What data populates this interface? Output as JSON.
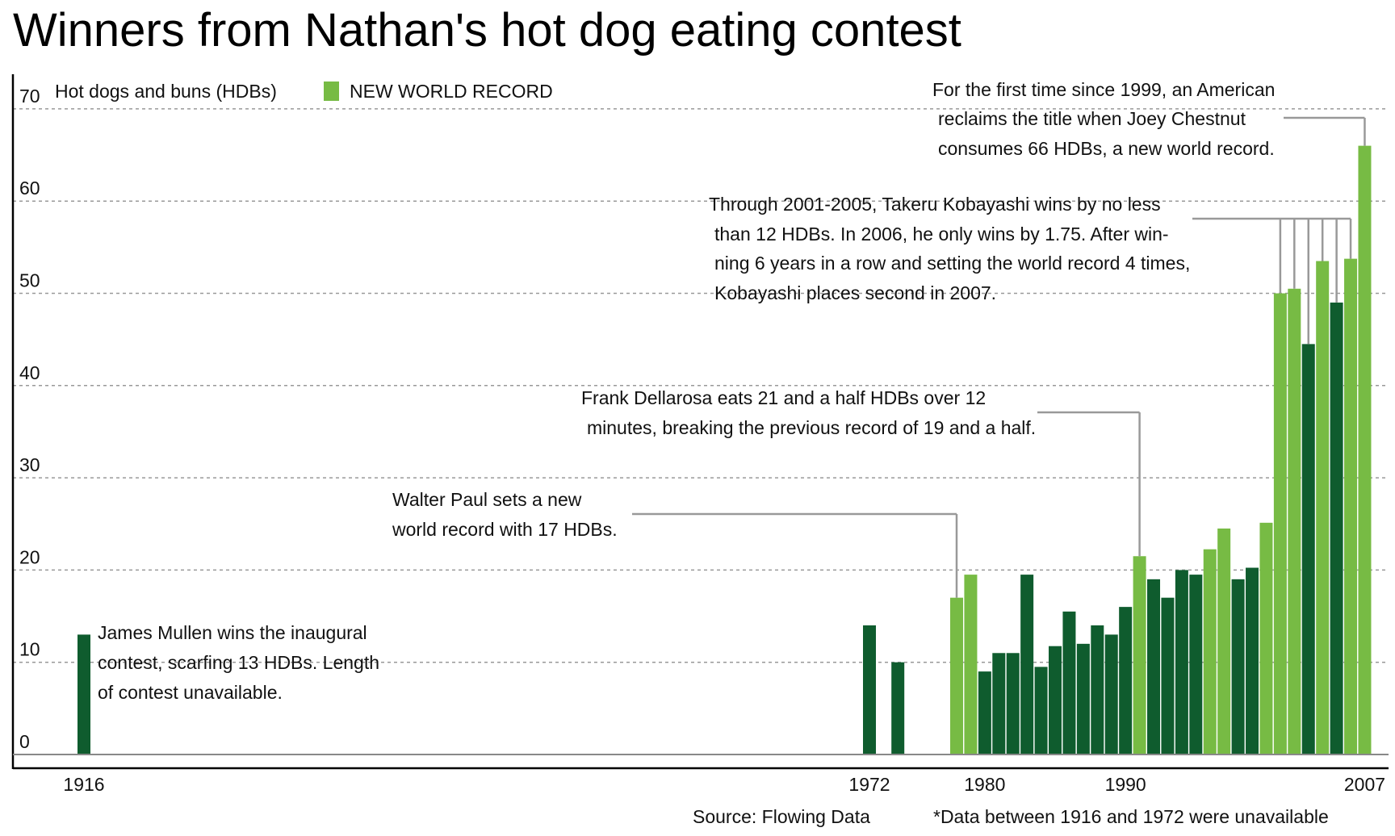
{
  "chart_data": {
    "type": "bar",
    "title": "Winners from Nathan's hot dog eating contest",
    "ylabel": "Hot dogs and buns (HDBs)",
    "ylim": [
      0,
      70
    ],
    "yticks": [
      0,
      10,
      20,
      30,
      40,
      50,
      60,
      70
    ],
    "xticks": [
      {
        "year": 1916,
        "label": "1916"
      },
      {
        "year": 1972,
        "label": "1972"
      },
      {
        "year": 1980,
        "label": "1980"
      },
      {
        "year": 1990,
        "label": "1990"
      },
      {
        "year": 2007,
        "label": "2007"
      }
    ],
    "grid": true,
    "legend": {
      "label": "NEW WORLD RECORD",
      "color": "#77bb44",
      "placement": "top-left"
    },
    "colors": {
      "record": "#77bb44",
      "regular": "#0f5c2e",
      "axis": "#000000",
      "grid": "#999999",
      "leader": "#999999"
    },
    "series": [
      {
        "year": 1916,
        "value": 13,
        "record": false
      },
      {
        "year": 1972,
        "value": 14,
        "record": false
      },
      {
        "year": 1974,
        "value": 10,
        "record": false
      },
      {
        "year": 1978,
        "value": 17,
        "record": true
      },
      {
        "year": 1979,
        "value": 19.5,
        "record": true
      },
      {
        "year": 1980,
        "value": 9,
        "record": false
      },
      {
        "year": 1981,
        "value": 11,
        "record": false
      },
      {
        "year": 1982,
        "value": 11,
        "record": false
      },
      {
        "year": 1983,
        "value": 19.5,
        "record": false
      },
      {
        "year": 1984,
        "value": 9.5,
        "record": false
      },
      {
        "year": 1985,
        "value": 11.75,
        "record": false
      },
      {
        "year": 1986,
        "value": 15.5,
        "record": false
      },
      {
        "year": 1987,
        "value": 12,
        "record": false
      },
      {
        "year": 1988,
        "value": 14,
        "record": false
      },
      {
        "year": 1989,
        "value": 13,
        "record": false
      },
      {
        "year": 1990,
        "value": 16,
        "record": false
      },
      {
        "year": 1991,
        "value": 21.5,
        "record": true
      },
      {
        "year": 1992,
        "value": 19,
        "record": false
      },
      {
        "year": 1993,
        "value": 17,
        "record": false
      },
      {
        "year": 1994,
        "value": 20,
        "record": false
      },
      {
        "year": 1995,
        "value": 19.5,
        "record": false
      },
      {
        "year": 1996,
        "value": 22.25,
        "record": true
      },
      {
        "year": 1997,
        "value": 24.5,
        "record": true
      },
      {
        "year": 1998,
        "value": 19,
        "record": false
      },
      {
        "year": 1999,
        "value": 20.25,
        "record": false
      },
      {
        "year": 2000,
        "value": 25.125,
        "record": true
      },
      {
        "year": 2001,
        "value": 50,
        "record": true
      },
      {
        "year": 2002,
        "value": 50.5,
        "record": true
      },
      {
        "year": 2003,
        "value": 44.5,
        "record": false
      },
      {
        "year": 2004,
        "value": 53.5,
        "record": true
      },
      {
        "year": 2005,
        "value": 49,
        "record": false
      },
      {
        "year": 2006,
        "value": 53.75,
        "record": true
      },
      {
        "year": 2007,
        "value": 66,
        "record": true
      }
    ],
    "annotations": [
      {
        "lines": [
          "For the first time since 1999, an American",
          "reclaims the title when Joey Chestnut",
          "consumes 66 HDBs, a new world record."
        ],
        "years": [
          2007
        ]
      },
      {
        "lines": [
          "Through 2001-2005, Takeru Kobayashi wins by no less",
          "than 12 HDBs. In 2006, he only wins by 1.75. After win-",
          "ning 6 years in a row and setting the world record 4 times,",
          "Kobayashi places second in 2007."
        ],
        "years": [
          2001,
          2002,
          2003,
          2004,
          2005,
          2006
        ]
      },
      {
        "lines": [
          "Frank Dellarosa eats 21 and a half HDBs over 12",
          "minutes, breaking the previous record of 19 and a half."
        ],
        "years": [
          1991
        ]
      },
      {
        "lines": [
          "Walter Paul sets a new",
          "world record with 17 HDBs."
        ],
        "years": [
          1978
        ]
      },
      {
        "lines": [
          "James Mullen wins the inaugural",
          "contest, scarfing 13 HDBs. Length",
          "of contest unavailable."
        ],
        "years": [
          1916
        ]
      }
    ],
    "source": "Source: Flowing Data",
    "footnote": "*Data between 1916 and 1972 were unavailable"
  }
}
